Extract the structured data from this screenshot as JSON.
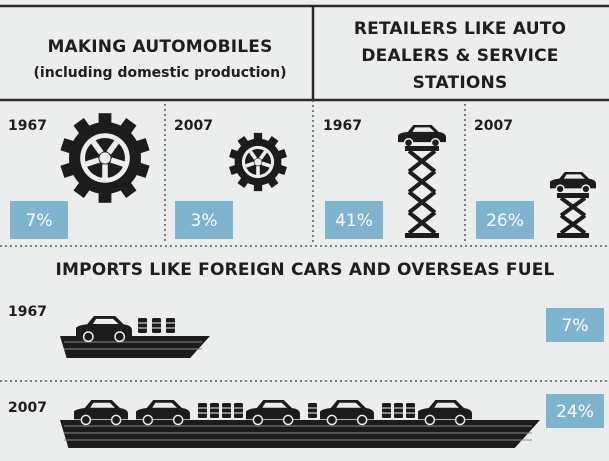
{
  "sections": [
    {
      "title_lines": [
        "MAKING AUTOMOBILES"
      ],
      "subtitle": "(including domestic production)",
      "panels": [
        {
          "year": "1967",
          "share": "7%"
        },
        {
          "year": "2007",
          "share": "3%"
        }
      ]
    },
    {
      "title_lines": [
        "RETAILERS LIKE AUTO",
        "DEALERS & SERVICE",
        "STATIONS"
      ],
      "panels": [
        {
          "year": "1967",
          "share": "41%"
        },
        {
          "year": "2007",
          "share": "26%"
        }
      ]
    },
    {
      "title_lines": [
        "IMPORTS LIKE FOREIGN CARS AND OVERSEAS FUEL"
      ],
      "panels": [
        {
          "year": "1967",
          "share": "7%"
        },
        {
          "year": "2007",
          "share": "24%"
        }
      ]
    }
  ]
}
